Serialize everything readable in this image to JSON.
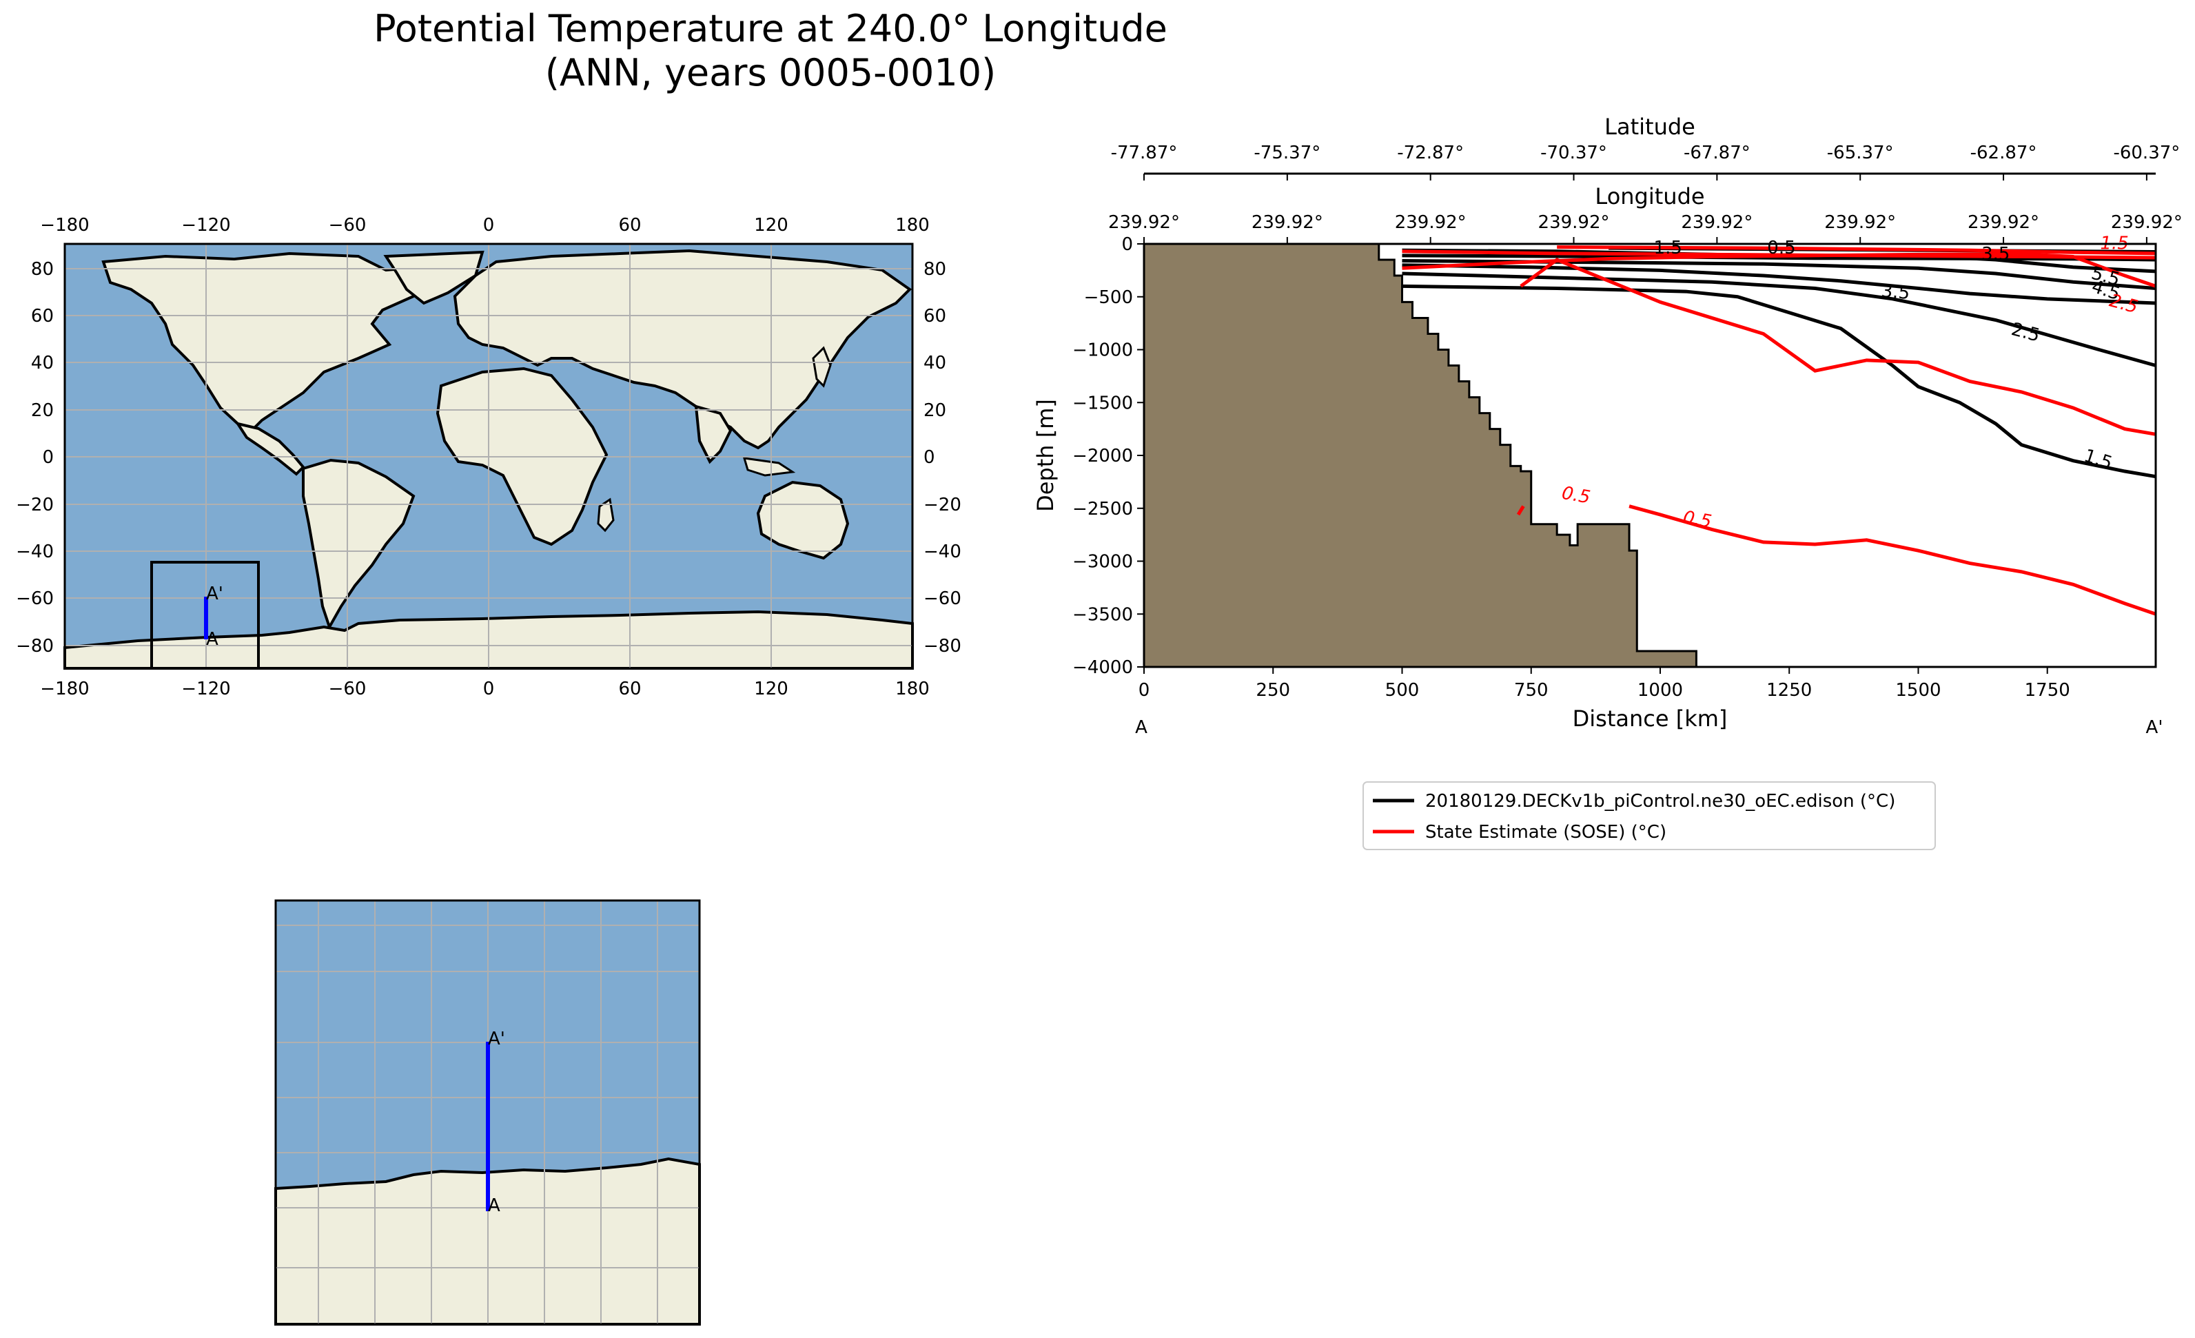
{
  "figure": {
    "title_line1": "Potential Temperature at 240.0° Longitude",
    "title_line2": "(ANN, years 0005-0010)"
  },
  "colors": {
    "ocean": "#7fabd1",
    "land": "#efeedd",
    "bathymetry": "#8c7d62",
    "model_contours": "#000000",
    "obs_contours": "#ff0000",
    "transect": "#0000ff",
    "grid": "#b0b0b0"
  },
  "world_map": {
    "lon_ticks": [
      "−180",
      "−120",
      "−60",
      "0",
      "60",
      "120",
      "180"
    ],
    "lat_ticks": [
      "80",
      "60",
      "40",
      "20",
      "0",
      "−20",
      "−40",
      "−60",
      "−80"
    ],
    "transect_start_label": "A",
    "transect_end_label": "A'"
  },
  "inset_map": {
    "transect_start_label": "A",
    "transect_end_label": "A'"
  },
  "chart_data": {
    "type": "line",
    "subtype": "vertical transect contour plot",
    "xlabel": "Distance [km]",
    "ylabel": "Depth [m]",
    "xlim": [
      0,
      1960
    ],
    "ylim": [
      -4000,
      0
    ],
    "x_ticks": [
      "0",
      "250",
      "500",
      "750",
      "1000",
      "1250",
      "1500",
      "1750"
    ],
    "y_ticks": [
      "0",
      "−500",
      "−1000",
      "−1500",
      "−2000",
      "−2500",
      "−3000",
      "−3500",
      "−4000"
    ],
    "x_tick_values": [
      0,
      250,
      500,
      750,
      1000,
      1250,
      1500,
      1750
    ],
    "y_tick_values": [
      0,
      -500,
      -1000,
      -1500,
      -2000,
      -2500,
      -3000,
      -3500,
      -4000
    ],
    "start_label": "A",
    "end_label": "A'",
    "latitude_axis": {
      "label": "Latitude",
      "ticks": [
        "-77.87°",
        "-75.37°",
        "-72.87°",
        "-70.37°",
        "-67.87°",
        "-65.37°",
        "-62.87°",
        "-60.37°"
      ]
    },
    "longitude_axis": {
      "label": "Longitude",
      "ticks": [
        "239.92°",
        "239.92°",
        "239.92°",
        "239.92°",
        "239.92°",
        "239.92°",
        "239.92°",
        "239.92°"
      ]
    },
    "top_tick_positions_km": [
      0,
      277.5,
      555,
      832.5,
      1110,
      1387.5,
      1665,
      1942.5
    ],
    "bathymetry": {
      "distance_km": [
        0,
        455,
        455,
        485,
        485,
        500,
        500,
        520,
        520,
        550,
        550,
        570,
        570,
        590,
        590,
        610,
        610,
        630,
        630,
        650,
        650,
        670,
        670,
        690,
        690,
        710,
        710,
        730,
        730,
        750,
        750,
        800,
        800,
        825,
        825,
        840,
        840,
        855,
        855,
        875,
        875,
        940,
        940,
        955,
        955,
        1070,
        1070,
        0
      ],
      "depth_m": [
        0,
        0,
        -150,
        -150,
        -300,
        -300,
        -550,
        -550,
        -700,
        -700,
        -850,
        -850,
        -1000,
        -1000,
        -1150,
        -1150,
        -1300,
        -1300,
        -1450,
        -1450,
        -1600,
        -1600,
        -1750,
        -1750,
        -1900,
        -1900,
        -2100,
        -2100,
        -2150,
        -2150,
        -2650,
        -2650,
        -2750,
        -2750,
        -2850,
        -2850,
        -2650,
        -2650,
        -2650,
        -2650,
        -2650,
        -2650,
        -2900,
        -2900,
        -3850,
        -3850,
        -4000,
        -4000
      ]
    },
    "series": [
      {
        "name": "20180129.DECKv1b_piControl.ne30_oEC.edison (°C)",
        "color": "#000000",
        "contours": [
          {
            "level": "1.5",
            "x": [
              500,
              800,
              1050,
              1150,
              1250,
              1350,
              1450,
              1500,
              1580,
              1650,
              1700,
              1800,
              1900,
              1960
            ],
            "y": [
              -400,
              -420,
              -450,
              -500,
              -650,
              -800,
              -1150,
              -1350,
              -1500,
              -1700,
              -1900,
              -2050,
              -2150,
              -2200
            ],
            "label_at": [
              1845,
              -2090
            ]
          },
          {
            "level": "2.5",
            "x": [
              500,
              800,
              1100,
              1300,
              1450,
              1550,
              1650,
              1750,
              1850,
              1960
            ],
            "y": [
              -280,
              -320,
              -360,
              -420,
              -520,
              -620,
              -720,
              -860,
              -1000,
              -1150
            ],
            "label_at": [
              1705,
              -890
            ]
          },
          {
            "level": "3.5",
            "x": [
              500,
              750,
              1000,
              1200,
              1350,
              1500,
              1600,
              1750,
              1960
            ],
            "y": [
              -200,
              -220,
              -250,
              -300,
              -350,
              -420,
              -470,
              -520,
              -560
            ]
          },
          {
            "level": "4.5",
            "x": [
              500,
              900,
              1200,
              1500,
              1650,
              1800,
              1960
            ],
            "y": [
              -160,
              -175,
              -190,
              -230,
              -280,
              -360,
              -420
            ]
          },
          {
            "level": "5.5",
            "x": [
              1500,
              1650,
              1800,
              1960
            ],
            "y": [
              -110,
              -150,
              -220,
              -260
            ]
          },
          {
            "level": "0.5",
            "x": [
              500,
              800,
              1000,
              1200,
              1500,
              1800,
              1960
            ],
            "y": [
              -60,
              -70,
              -90,
              -110,
              -130,
              -140,
              -150
            ]
          },
          {
            "level": "0.5",
            "x": [
              500,
              900,
              1300,
              1700,
              1960
            ],
            "y": [
              -110,
              -120,
              -135,
              -140,
              -145
            ]
          },
          {
            "level": "1.5",
            "x": [
              900,
              1200,
              1500,
              1800,
              1960
            ],
            "y": [
              -40,
              -50,
              -60,
              -70,
              -75
            ]
          }
        ],
        "labels": [
          {
            "text": "1.5",
            "x": 1845,
            "y": -2090,
            "angle": 18
          },
          {
            "text": "2.5",
            "x": 1705,
            "y": -890,
            "angle": 15
          },
          {
            "text": "3.5",
            "x": 1455,
            "y": -510,
            "angle": 5
          },
          {
            "text": "4.5",
            "x": 1860,
            "y": -490,
            "angle": 18
          },
          {
            "text": "5.5",
            "x": 1860,
            "y": -360,
            "angle": 15
          },
          {
            "text": "3.5",
            "x": 1650,
            "y": -150,
            "angle": 0
          },
          {
            "text": "0.5",
            "x": 1235,
            "y": -90,
            "angle": 0
          },
          {
            "text": "1.5",
            "x": 1015,
            "y": -90,
            "angle": 0
          }
        ]
      },
      {
        "name": "State Estimate (SOSE) (°C)",
        "color": "#ff0000",
        "contours": [
          {
            "level": "0.5",
            "x": [
              725,
              735
            ],
            "y": [
              -2560,
              -2480
            ],
            "label_at": [
              835,
              -2420
            ]
          },
          {
            "level": "0.5",
            "x": [
              940,
              1000,
              1100,
              1200,
              1300,
              1400,
              1500,
              1600,
              1700,
              1800,
              1900,
              1960
            ],
            "y": [
              -2480,
              -2560,
              -2700,
              -2820,
              -2840,
              -2800,
              -2900,
              -3020,
              -3100,
              -3220,
              -3400,
              -3500
            ],
            "label_at": [
              1070,
              -2680
            ]
          },
          {
            "level": "1.5",
            "x": [
              730,
              800,
              900,
              1000,
              1100,
              1200,
              1300,
              1400,
              1500,
              1600,
              1700,
              1800,
              1900,
              1960
            ],
            "y": [
              -400,
              -150,
              -350,
              -550,
              -700,
              -850,
              -1200,
              -1100,
              -1120,
              -1300,
              -1400,
              -1550,
              -1750,
              -1800
            ]
          },
          {
            "level": "2.5",
            "x": [
              500,
              700,
              900,
              1100,
              1300,
              1500,
              1700,
              1800,
              1900,
              1960
            ],
            "y": [
              -230,
              -180,
              -140,
              -120,
              -110,
              -100,
              -95,
              -120,
              -300,
              -400
            ]
          },
          {
            "level": "0.5",
            "x": [
              500,
              800,
              1100,
              1400,
              1700,
              1960
            ],
            "y": [
              -70,
              -90,
              -100,
              -110,
              -120,
              -130
            ]
          },
          {
            "level": "1.5",
            "x": [
              800,
              1200,
              1600,
              1800,
              1960
            ],
            "y": [
              -30,
              -40,
              -60,
              -80,
              -90
            ]
          }
        ],
        "labels": [
          {
            "text": "0.5",
            "x": 835,
            "y": -2430,
            "angle": 10
          },
          {
            "text": "0.5",
            "x": 1070,
            "y": -2660,
            "angle": 10
          },
          {
            "text": "1.5",
            "x": 1880,
            "y": -50,
            "angle": 0
          },
          {
            "text": "2.5",
            "x": 1895,
            "y": -620,
            "angle": 15
          }
        ]
      }
    ]
  }
}
